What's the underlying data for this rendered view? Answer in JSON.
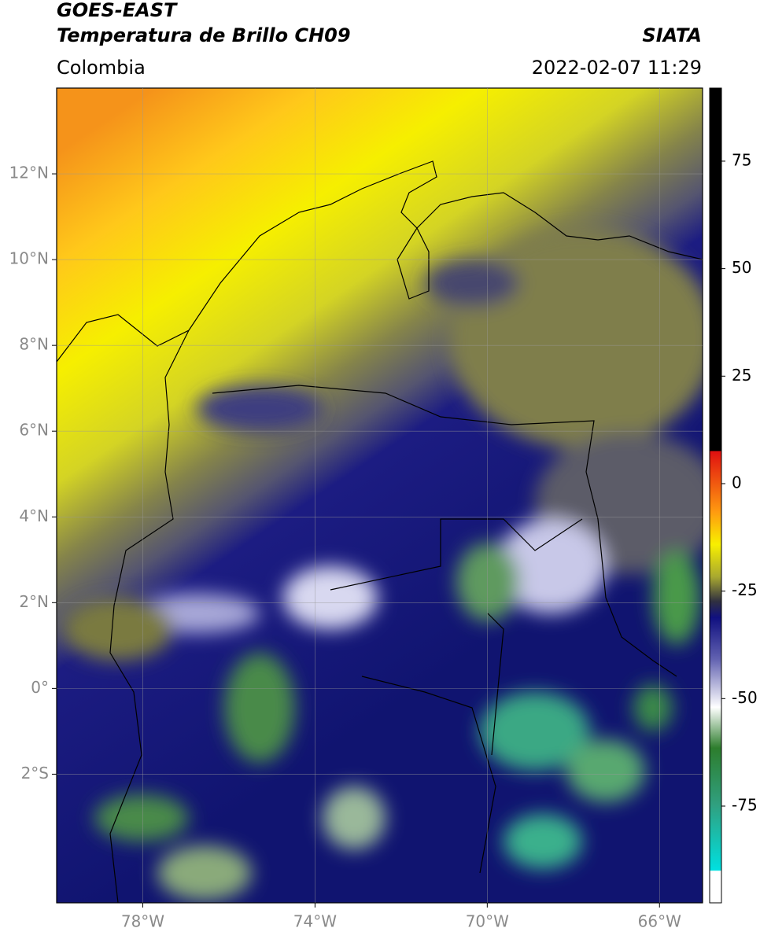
{
  "header": {
    "title_line1": "GOES-EAST",
    "title_line2": "Temperatura de Brillo CH09",
    "source": "SIATA",
    "region": "Colombia",
    "datetime": "2022-02-07 11:29"
  },
  "map": {
    "xlim": [
      -80,
      -65
    ],
    "ylim": [
      -5,
      14
    ],
    "xticks": [
      {
        "value": -78,
        "label": "78°W"
      },
      {
        "value": -74,
        "label": "74°W"
      },
      {
        "value": -70,
        "label": "70°W"
      },
      {
        "value": -66,
        "label": "66°W"
      }
    ],
    "yticks": [
      {
        "value": 12,
        "label": "12°N"
      },
      {
        "value": 10,
        "label": "10°N"
      },
      {
        "value": 8,
        "label": "8°N"
      },
      {
        "value": 6,
        "label": "6°N"
      },
      {
        "value": 4,
        "label": "4°N"
      },
      {
        "value": 2,
        "label": "2°N"
      },
      {
        "value": 0,
        "label": "0°"
      },
      {
        "value": -2,
        "label": "2°S"
      }
    ]
  },
  "colorbar": {
    "lim": [
      -97.5,
      92
    ],
    "ticks": [
      75,
      50,
      25,
      0,
      -25,
      -50,
      -75
    ]
  }
}
